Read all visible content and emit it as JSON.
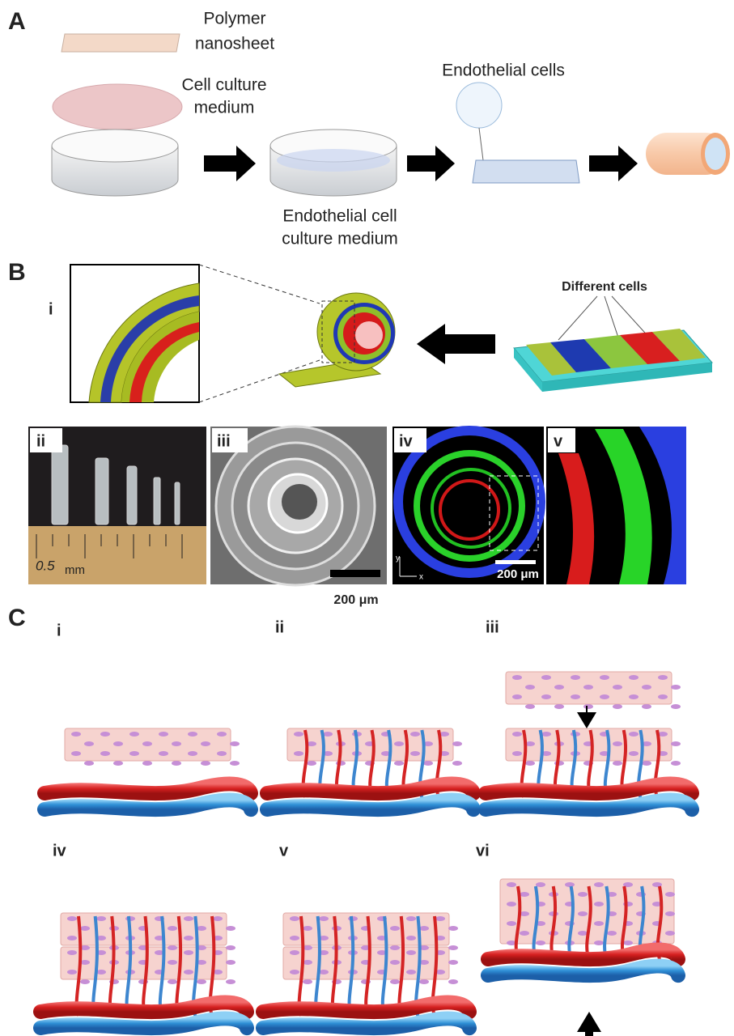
{
  "panel_a": {
    "label": "A",
    "polymer_nanosheet": [
      "Polymer",
      "nanosheet"
    ],
    "cell_culture_medium": [
      "Cell culture",
      "medium"
    ],
    "endothelial_cells": "Endothelial cells",
    "endothelial_culture_medium": [
      "Endothelial cell",
      "culture medium"
    ]
  },
  "panel_b": {
    "label": "B",
    "sub_i": "i",
    "different_cells": "Different cells",
    "photos": [
      {
        "label": "ii",
        "ruler_value": "0.5",
        "ruler_unit": "mm"
      },
      {
        "label": "iii",
        "scale_bar": "200 μm"
      },
      {
        "label": "iv",
        "scale_bar": "200 μm",
        "axis_y": "y",
        "axis_x": "x"
      },
      {
        "label": "v"
      }
    ]
  },
  "panel_c": {
    "label": "C",
    "steps": [
      "i",
      "ii",
      "iii",
      "iv",
      "v",
      "vi"
    ]
  }
}
